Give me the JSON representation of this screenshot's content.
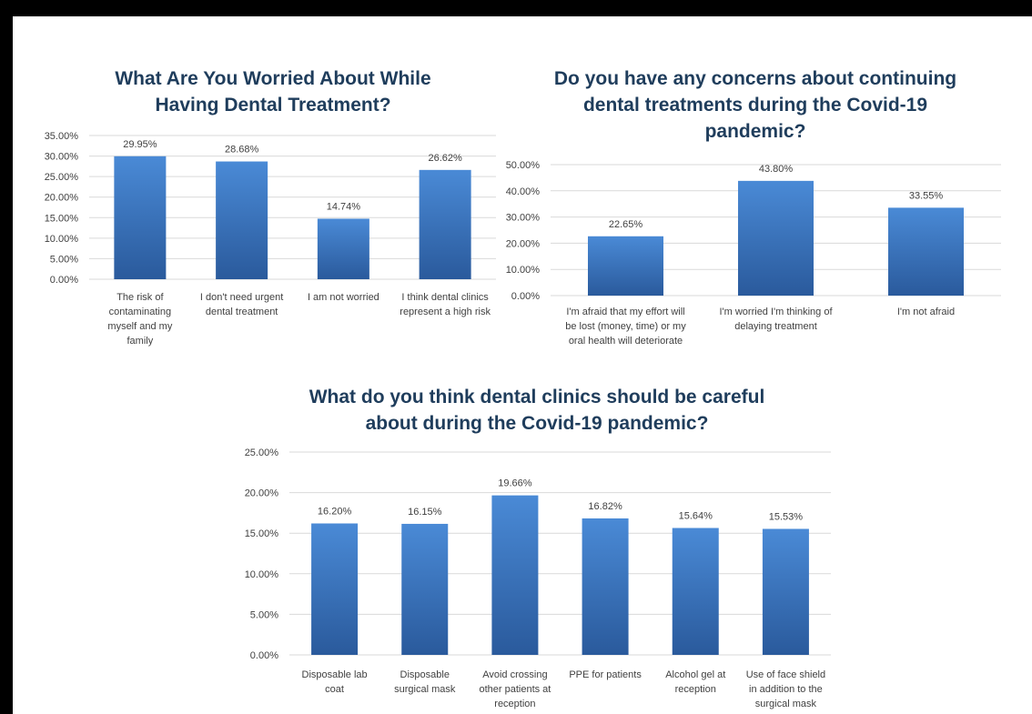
{
  "chart_data": [
    {
      "type": "bar",
      "title_lines": [
        "What Are You Worried About While",
        "Having Dental Treatment?"
      ],
      "categories": [
        [
          "The risk of",
          "contaminating",
          "myself and my",
          "family"
        ],
        [
          "I don't need urgent",
          "dental treatment"
        ],
        [
          "I am not worried"
        ],
        [
          "I think dental clinics",
          "represent a high risk"
        ]
      ],
      "values": [
        29.95,
        28.68,
        14.74,
        26.62
      ],
      "value_labels": [
        "29.95%",
        "28.68%",
        "14.74%",
        "26.62%"
      ],
      "ylim": [
        0,
        35
      ],
      "yticks": [
        "0.00%",
        "5.00%",
        "10.00%",
        "15.00%",
        "20.00%",
        "25.00%",
        "30.00%",
        "35.00%"
      ],
      "grid": true,
      "color": "#3a78c4"
    },
    {
      "type": "bar",
      "title_lines": [
        "Do you have any concerns about continuing",
        "dental treatments during the Covid-19",
        "pandemic?"
      ],
      "categories": [
        [
          "I'm afraid that my effort will",
          "be lost (money, time) or my",
          "oral health will deteriorate"
        ],
        [
          "I'm worried I'm thinking of",
          "delaying treatment"
        ],
        [
          "I'm not afraid"
        ]
      ],
      "values": [
        22.65,
        43.8,
        33.55
      ],
      "value_labels": [
        "22.65%",
        "43.80%",
        "33.55%"
      ],
      "ylim": [
        0,
        50
      ],
      "yticks": [
        "0.00%",
        "10.00%",
        "20.00%",
        "30.00%",
        "40.00%",
        "50.00%"
      ],
      "grid": true,
      "color": "#3a78c4"
    },
    {
      "type": "bar",
      "title_lines": [
        "What do you think dental clinics should be careful",
        "about during the Covid-19 pandemic?"
      ],
      "categories": [
        [
          "Disposable lab",
          "coat"
        ],
        [
          "Disposable",
          "surgical mask"
        ],
        [
          "Avoid crossing",
          "other patients at",
          "reception"
        ],
        [
          "PPE for patients"
        ],
        [
          "Alcohol gel at",
          "reception"
        ],
        [
          "Use of face shield",
          "in addition to the",
          "surgical mask"
        ]
      ],
      "values": [
        16.2,
        16.15,
        19.66,
        16.82,
        15.64,
        15.53
      ],
      "value_labels": [
        "16.20%",
        "16.15%",
        "19.66%",
        "16.82%",
        "15.64%",
        "15.53%"
      ],
      "ylim": [
        0,
        25
      ],
      "yticks": [
        "0.00%",
        "5.00%",
        "10.00%",
        "15.00%",
        "20.00%",
        "25.00%"
      ],
      "grid": true,
      "color": "#3a78c4"
    }
  ]
}
